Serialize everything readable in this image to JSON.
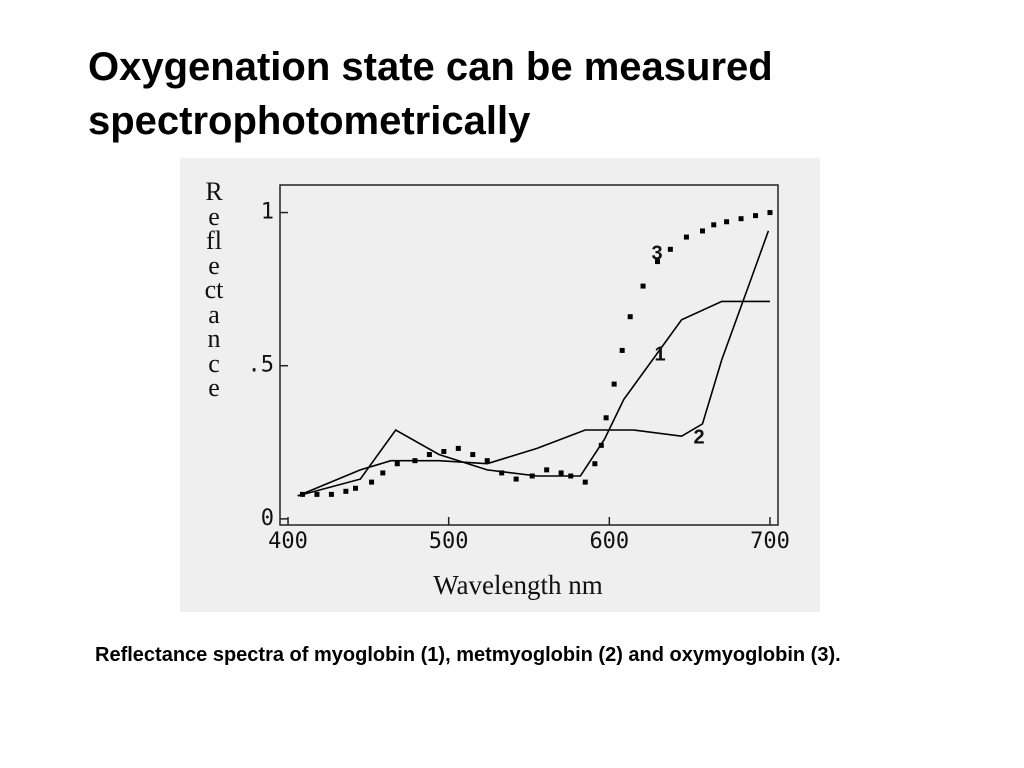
{
  "title": "Oxygenation state can be measured spectrophotometrically",
  "caption": "Reflectance spectra of myoglobin (1),  metmyoglobin (2) and oxymyoglobin (3).",
  "chart_data": {
    "type": "line",
    "x_label": "Wavelength nm",
    "y_label": "Reflectance",
    "xlim": [
      395,
      705
    ],
    "ylim": [
      -0.02,
      1.09
    ],
    "xticks": [
      400,
      500,
      600,
      700
    ],
    "yticks": [
      0,
      {
        "value": 0.5,
        "label": ".5"
      },
      1
    ],
    "series": [
      {
        "name": "1",
        "color": "#000000",
        "style": "line",
        "x": [
          406,
          445,
          467,
          494,
          524,
          555,
          582,
          597,
          609,
          627,
          645,
          670,
          700
        ],
        "values": [
          0.075,
          0.13,
          0.29,
          0.21,
          0.16,
          0.14,
          0.14,
          0.26,
          0.39,
          0.52,
          0.65,
          0.71,
          0.71
        ]
      },
      {
        "name": "2",
        "color": "#000000",
        "style": "line",
        "x": [
          406,
          445,
          464,
          494,
          524,
          555,
          585,
          615,
          645,
          658,
          670,
          688,
          699
        ],
        "values": [
          0.075,
          0.16,
          0.19,
          0.19,
          0.18,
          0.23,
          0.29,
          0.29,
          0.27,
          0.31,
          0.52,
          0.78,
          0.94
        ]
      },
      {
        "name": "3",
        "color": "#000000",
        "style": "dots",
        "x": [
          409,
          418,
          427,
          436,
          442,
          452,
          459,
          468,
          479,
          488,
          497,
          506,
          515,
          524,
          533,
          542,
          552,
          561,
          570,
          576,
          585,
          591,
          595,
          598,
          603,
          608,
          613,
          621,
          630,
          638,
          648,
          658,
          665,
          673,
          682,
          691,
          700
        ],
        "values": [
          0.08,
          0.08,
          0.08,
          0.09,
          0.1,
          0.12,
          0.15,
          0.18,
          0.19,
          0.21,
          0.22,
          0.23,
          0.21,
          0.19,
          0.15,
          0.13,
          0.14,
          0.16,
          0.15,
          0.14,
          0.12,
          0.18,
          0.24,
          0.33,
          0.44,
          0.55,
          0.66,
          0.76,
          0.84,
          0.88,
          0.92,
          0.94,
          0.96,
          0.97,
          0.98,
          0.99,
          1.0
        ]
      }
    ]
  }
}
